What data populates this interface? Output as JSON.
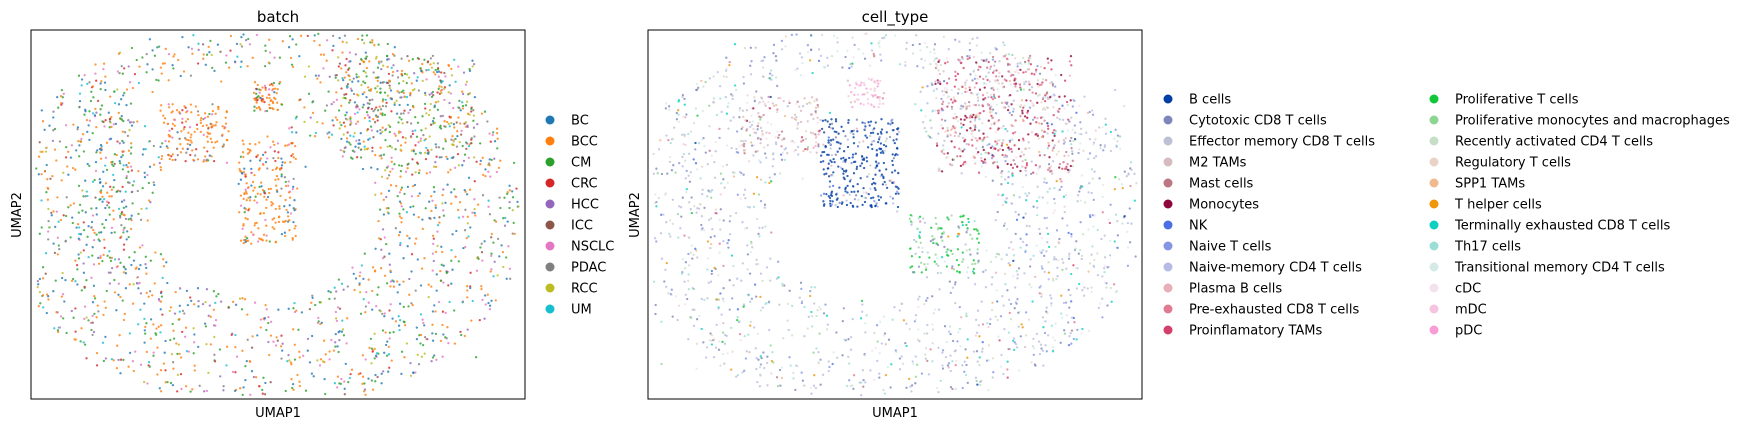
{
  "chart_data": [
    {
      "type": "scatter",
      "title": "batch",
      "xlabel": "UMAP1",
      "ylabel": "UMAP2",
      "grid": false,
      "ticks": false,
      "legend_placement": "right",
      "legend": [
        {
          "label": "BC",
          "color": "#1f77b4"
        },
        {
          "label": "BCC",
          "color": "#ff7f0e"
        },
        {
          "label": "CM",
          "color": "#2ca02c"
        },
        {
          "label": "CRC",
          "color": "#d62728"
        },
        {
          "label": "HCC",
          "color": "#9467bd"
        },
        {
          "label": "ICC",
          "color": "#8c564b"
        },
        {
          "label": "NSCLC",
          "color": "#e377c2"
        },
        {
          "label": "PDAC",
          "color": "#7f7f7f"
        },
        {
          "label": "RCC",
          "color": "#bcbd22"
        },
        {
          "label": "UM",
          "color": "#17becf"
        }
      ]
    },
    {
      "type": "scatter",
      "title": "cell_type",
      "xlabel": "UMAP1",
      "ylabel": "UMAP2",
      "grid": false,
      "ticks": false,
      "legend_placement": "right",
      "legend": [
        {
          "label": "B cells",
          "color": "#023fa5"
        },
        {
          "label": "Cytotoxic CD8 T cells",
          "color": "#7d87b9"
        },
        {
          "label": "Effector memory CD8 T cells",
          "color": "#bec1d4"
        },
        {
          "label": "M2 TAMs",
          "color": "#d6bcc0"
        },
        {
          "label": "Mast cells",
          "color": "#bb7784"
        },
        {
          "label": "Monocytes",
          "color": "#8e063b"
        },
        {
          "label": "NK",
          "color": "#4a6fe3"
        },
        {
          "label": "Naive T cells",
          "color": "#8595e1"
        },
        {
          "label": "Naive-memory CD4 T cells",
          "color": "#b5bbe3"
        },
        {
          "label": "Plasma B cells",
          "color": "#e6afb9"
        },
        {
          "label": "Pre-exhausted CD8 T cells",
          "color": "#e07b91"
        },
        {
          "label": "Proinflamatory TAMs",
          "color": "#d33f6a"
        },
        {
          "label": "Proliferative T cells",
          "color": "#11c638"
        },
        {
          "label": "Proliferative monocytes and macrophages",
          "color": "#8dd593"
        },
        {
          "label": "Recently activated CD4 T cells",
          "color": "#c6dec7"
        },
        {
          "label": "Regulatory T cells",
          "color": "#ead3c6"
        },
        {
          "label": "SPP1 TAMs",
          "color": "#f0b98d"
        },
        {
          "label": "T helper cells",
          "color": "#ef9708"
        },
        {
          "label": "Terminally exhausted CD8 T cells",
          "color": "#0fcfc0"
        },
        {
          "label": "Th17 cells",
          "color": "#9cded6"
        },
        {
          "label": "Transitional memory CD4 T cells",
          "color": "#d5eae7"
        },
        {
          "label": "cDC",
          "color": "#f3e1eb"
        },
        {
          "label": "mDC",
          "color": "#f6c4e1"
        },
        {
          "label": "pDC",
          "color": "#f79cd4"
        }
      ]
    }
  ]
}
